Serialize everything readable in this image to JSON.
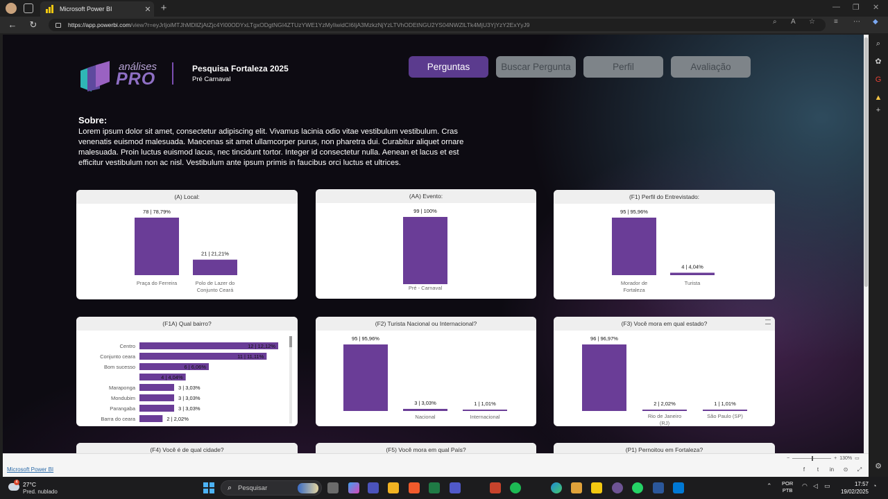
{
  "browser": {
    "tab_title": "Microsoft Power BI",
    "url_host": "https://app.powerbi.com",
    "url_rest": "/view?r=eyJrIjoiMTJhMDllZjAtZjc4Yi00ODYxLTgxODgtNGI4ZTUzYWE1YzMyIiwidCI6IjA3MzkzNjYzLTVhODEtNGU2YS04NWZlLTk4MjU3YjYzY2ExYyJ9"
  },
  "report": {
    "logo_small": "análises",
    "logo_big": "PRO",
    "title": "Pesquisa Fortaleza 2025",
    "subtitle": "Pré Carnaval",
    "nav": {
      "perguntas": "Perguntas",
      "buscar": "Buscar Pergunta",
      "perfil": "Perfil",
      "avaliacao": "Avaliação"
    },
    "about_heading": "Sobre:",
    "about_text": "Lorem ipsum dolor sit amet, consectetur adipiscing elit. Vivamus lacinia odio vitae vestibulum vestibulum. Cras venenatis euismod malesuada. Maecenas sit amet ullamcorper purus, non pharetra dui. Curabitur aliquet ornare malesuada. Proin luctus euismod lacus, nec tincidunt tortor. Integer id consectetur nulla. Aenean et lacus et est efficitur vestibulum non ac nisl. Vestibulum ante ipsum primis in faucibus orci luctus et ultrices."
  },
  "chart_data": [
    {
      "id": "local",
      "type": "bar",
      "title": "(A) Local:",
      "categories": [
        "Praça do Ferreira",
        "Polo de Lazer do Conjunto Ceará"
      ],
      "values": [
        78,
        21
      ],
      "labels": [
        "78 | 78,79%",
        "21 | 21,21%"
      ]
    },
    {
      "id": "evento",
      "type": "bar",
      "title": "(AA) Evento:",
      "categories": [
        "Pré - Carnaval"
      ],
      "values": [
        99
      ],
      "labels": [
        "99 | 100%"
      ]
    },
    {
      "id": "perfil",
      "type": "bar",
      "title": "(F1) Perfil do Entrevistado:",
      "categories": [
        "Morador de Fortaleza",
        "Turista"
      ],
      "values": [
        95,
        4
      ],
      "labels": [
        "95 | 95,96%",
        "4 | 4,04%"
      ]
    },
    {
      "id": "bairro",
      "type": "bar",
      "orientation": "horizontal",
      "title": "(F1A) Qual bairro?",
      "categories": [
        "Centro",
        "Conjunto ceara",
        "Bom sucesso",
        "",
        "Maraponga",
        "Mondubim",
        "Parangaba",
        "Barra do ceara"
      ],
      "values": [
        12,
        11,
        6,
        4,
        3,
        3,
        3,
        2
      ],
      "labels": [
        "12 | 12,12%",
        "11 | 11,11%",
        "6 | 6,06%",
        "4 | 4,04%",
        "3 | 3,03%",
        "3 | 3,03%",
        "3 | 3,03%",
        "2 | 2,02%"
      ]
    },
    {
      "id": "turista",
      "type": "bar",
      "title": "(F2) Turista Nacional ou Internacional?",
      "categories": [
        "",
        "Nacional",
        "Internacional"
      ],
      "values": [
        95,
        3,
        1
      ],
      "labels": [
        "95 | 95,96%",
        "3 | 3,03%",
        "1 | 1,01%"
      ]
    },
    {
      "id": "estado",
      "type": "bar",
      "title": "(F3) Você mora em qual estado?",
      "categories": [
        "",
        "Rio de Janeiro (RJ)",
        "São Paulo (SP)"
      ],
      "values": [
        96,
        2,
        1
      ],
      "labels": [
        "96 | 96,97%",
        "2 | 2,02%",
        "1 | 1,01%"
      ]
    }
  ],
  "peek_titles": {
    "cidade": "(F4) Você é de qual cidade?",
    "pais": "(F5) Você mora em qual País?",
    "pernoitou": "(P1) Pernoitou em Fortaleza?"
  },
  "status": {
    "link": "Microsoft Power BI",
    "zoom": "130%"
  },
  "taskbar": {
    "temp": "27°C",
    "weather": "Pred. nublado",
    "weather_badge": "4",
    "search": "Pesquisar",
    "lang1": "POR",
    "lang2": "PTB",
    "time": "17:57",
    "date": "19/02/2025"
  },
  "colors": {
    "bar": "#6a3d97",
    "accent": "#5b3b8e"
  }
}
